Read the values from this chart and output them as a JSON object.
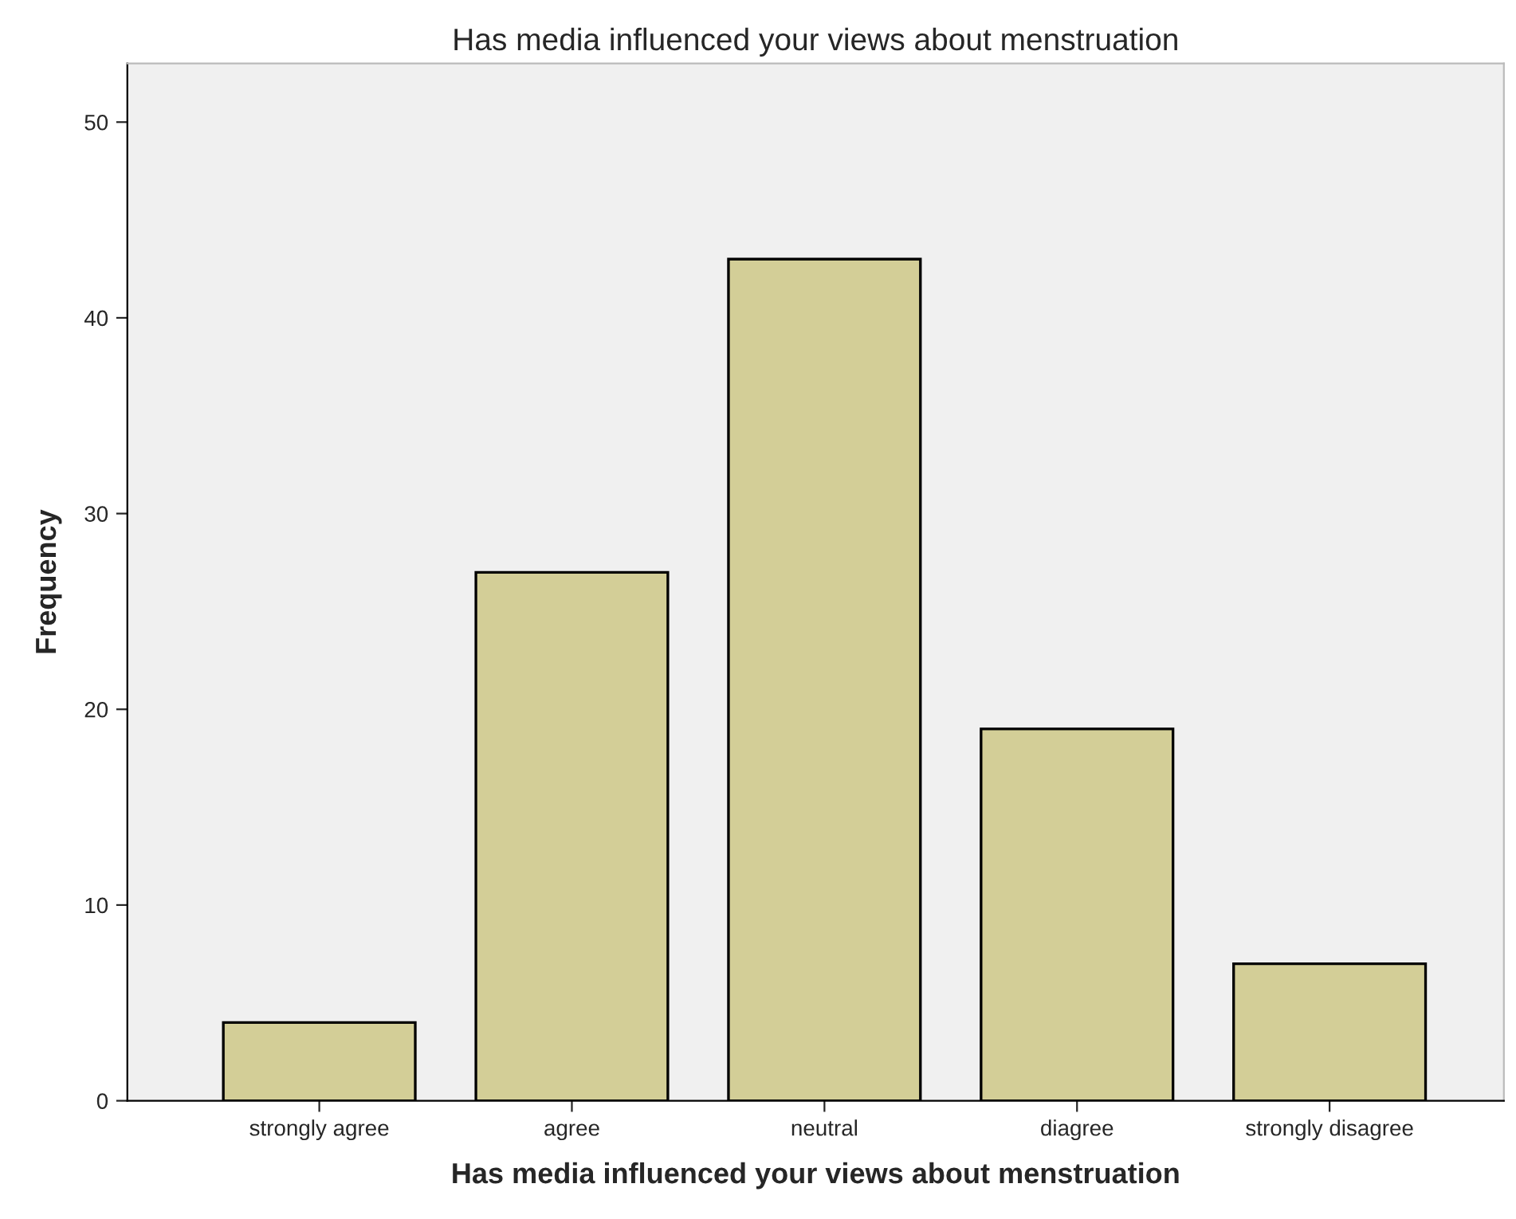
{
  "chart_data": {
    "type": "bar",
    "title": "Has media influenced your views about menstruation",
    "xlabel": "Has media influenced your views about menstruation",
    "ylabel": "Frequency",
    "categories": [
      "strongly agree",
      "agree",
      "neutral",
      "diagree",
      "strongly disagree"
    ],
    "values": [
      4,
      27,
      43,
      19,
      7
    ],
    "color": "#d3ce97",
    "ylim": [
      0,
      53
    ],
    "yticks": [
      0,
      10,
      20,
      30,
      40,
      50
    ],
    "grid": false,
    "legend": false
  }
}
